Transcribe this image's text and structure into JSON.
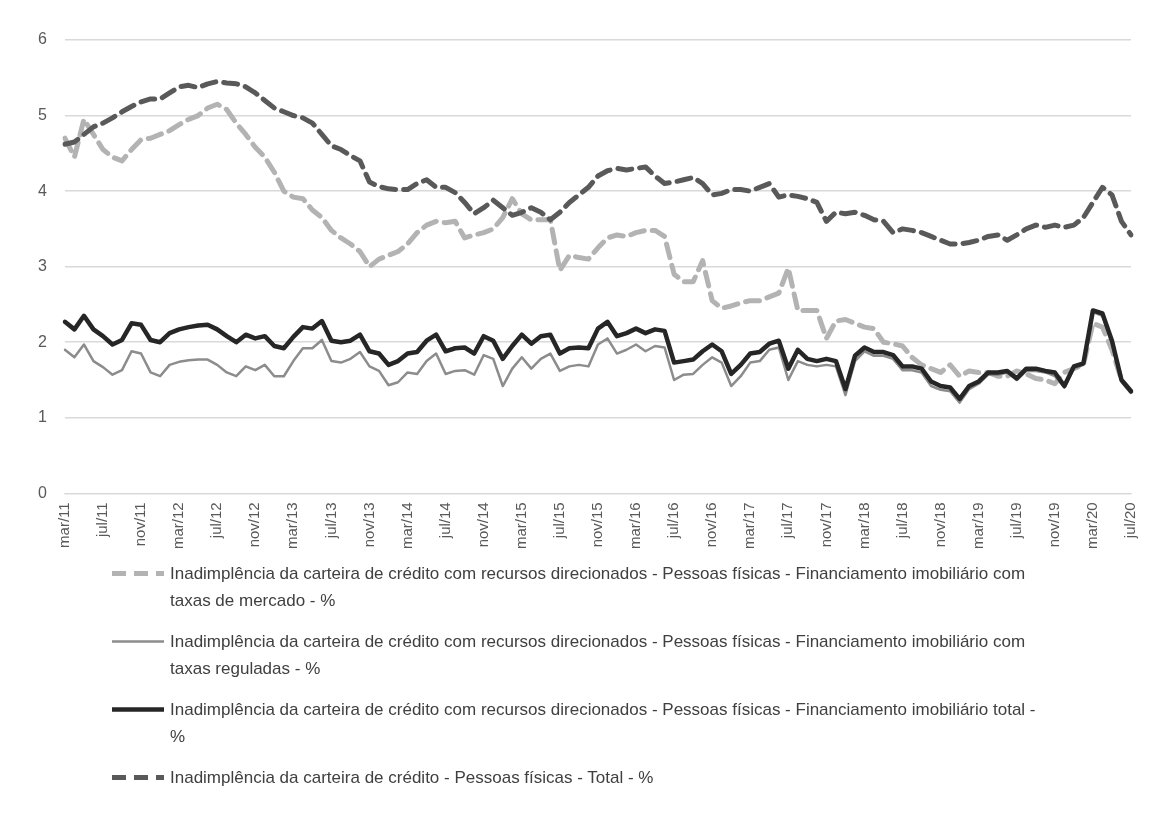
{
  "chart_data": {
    "type": "line",
    "categories": [
      "mar/11",
      null,
      null,
      null,
      "jul/11",
      null,
      null,
      null,
      "nov/11",
      null,
      null,
      null,
      "mar/12",
      null,
      null,
      null,
      "jul/12",
      null,
      null,
      null,
      "nov/12",
      null,
      null,
      null,
      "mar/13",
      null,
      null,
      null,
      "jul/13",
      null,
      null,
      null,
      "nov/13",
      null,
      null,
      null,
      "mar/14",
      null,
      null,
      null,
      "jul/14",
      null,
      null,
      null,
      "nov/14",
      null,
      null,
      null,
      "mar/15",
      null,
      null,
      null,
      "jul/15",
      null,
      null,
      null,
      "nov/15",
      null,
      null,
      null,
      "mar/16",
      null,
      null,
      null,
      "jul/16",
      null,
      null,
      null,
      "nov/16",
      null,
      null,
      null,
      "mar/17",
      null,
      null,
      null,
      "jul/17",
      null,
      null,
      null,
      "nov/17",
      null,
      null,
      null,
      "mar/18",
      null,
      null,
      null,
      "jul/18",
      null,
      null,
      null,
      "nov/18",
      null,
      null,
      null,
      "mar/19",
      null,
      null,
      null,
      "jul/19",
      null,
      null,
      null,
      "nov/19",
      null,
      null,
      null,
      "mar/20",
      null,
      null,
      null,
      "jul/20"
    ],
    "ylim": [
      0,
      6
    ],
    "yticks": [
      0,
      1,
      2,
      3,
      4,
      5,
      6
    ],
    "grid": "y",
    "legend": "bottom",
    "marker": "none",
    "series": [
      {
        "name": "Inadimplência da carteira de crédito com recursos direcionados - Pessoas físicas - Financiamento imobiliário com taxas de mercado - %",
        "color": "#b3b3b3",
        "line_style": "dashed",
        "values": [
          4.7,
          4.45,
          4.95,
          4.75,
          4.55,
          4.45,
          4.4,
          4.55,
          4.68,
          4.7,
          4.75,
          4.8,
          4.88,
          4.95,
          5.0,
          5.1,
          5.15,
          5.08,
          4.9,
          4.75,
          4.58,
          4.45,
          4.25,
          4.0,
          3.92,
          3.9,
          3.75,
          3.65,
          3.48,
          3.38,
          3.3,
          3.2,
          3.0,
          3.1,
          3.15,
          3.2,
          3.3,
          3.45,
          3.55,
          3.6,
          3.58,
          3.6,
          3.38,
          3.42,
          3.45,
          3.5,
          3.65,
          3.9,
          3.7,
          3.62,
          3.62,
          3.62,
          2.95,
          3.15,
          3.12,
          3.1,
          3.25,
          3.38,
          3.42,
          3.4,
          3.45,
          3.48,
          3.48,
          3.4,
          2.9,
          2.8,
          2.8,
          3.08,
          2.55,
          2.45,
          2.48,
          2.52,
          2.55,
          2.55,
          2.6,
          2.65,
          2.98,
          2.42,
          2.42,
          2.42,
          2.05,
          2.28,
          2.3,
          2.25,
          2.2,
          2.18,
          2.0,
          1.98,
          1.95,
          1.8,
          1.7,
          1.65,
          1.6,
          1.7,
          1.55,
          1.62,
          1.6,
          1.6,
          1.55,
          1.55,
          1.62,
          1.58,
          1.52,
          1.5,
          1.45,
          1.6,
          1.65,
          1.7,
          2.25,
          2.2,
          1.9,
          1.5,
          1.35
        ]
      },
      {
        "name": "Inadimplência da carteira de crédito com recursos direcionados - Pessoas físicas - Financiamento imobiliário com taxas reguladas - %",
        "color": "#8c8c8c",
        "line_style": "solid",
        "values": [
          1.9,
          1.8,
          1.97,
          1.75,
          1.67,
          1.57,
          1.63,
          1.88,
          1.85,
          1.6,
          1.55,
          1.7,
          1.74,
          1.76,
          1.77,
          1.77,
          1.7,
          1.6,
          1.55,
          1.68,
          1.63,
          1.7,
          1.55,
          1.55,
          1.75,
          1.92,
          1.92,
          2.03,
          1.75,
          1.73,
          1.78,
          1.87,
          1.68,
          1.62,
          1.43,
          1.47,
          1.6,
          1.58,
          1.75,
          1.85,
          1.58,
          1.62,
          1.63,
          1.57,
          1.83,
          1.78,
          1.42,
          1.65,
          1.8,
          1.65,
          1.78,
          1.85,
          1.62,
          1.68,
          1.7,
          1.68,
          1.97,
          2.05,
          1.85,
          1.9,
          1.97,
          1.88,
          1.95,
          1.93,
          1.5,
          1.57,
          1.58,
          1.7,
          1.8,
          1.73,
          1.42,
          1.55,
          1.73,
          1.75,
          1.9,
          1.93,
          1.5,
          1.75,
          1.7,
          1.68,
          1.7,
          1.68,
          1.3,
          1.75,
          1.88,
          1.82,
          1.82,
          1.78,
          1.63,
          1.63,
          1.6,
          1.42,
          1.37,
          1.35,
          1.2,
          1.38,
          1.45,
          1.57,
          1.57,
          1.6,
          1.5,
          1.62,
          1.62,
          1.6,
          1.55,
          1.4,
          1.65,
          1.7,
          2.4,
          2.35,
          1.98,
          1.48,
          1.33
        ]
      },
      {
        "name": "Inadimplência da carteira de crédito com recursos direcionados - Pessoas físicas - Financiamento imobiliário total - %",
        "color": "#262626",
        "line_style": "solid",
        "values": [
          2.27,
          2.17,
          2.35,
          2.17,
          2.08,
          1.97,
          2.03,
          2.25,
          2.23,
          2.03,
          2.0,
          2.12,
          2.17,
          2.2,
          2.22,
          2.23,
          2.17,
          2.08,
          2.0,
          2.1,
          2.05,
          2.08,
          1.95,
          1.92,
          2.07,
          2.2,
          2.18,
          2.28,
          2.02,
          2.0,
          2.02,
          2.1,
          1.88,
          1.85,
          1.7,
          1.75,
          1.85,
          1.87,
          2.02,
          2.1,
          1.88,
          1.92,
          1.93,
          1.85,
          2.08,
          2.02,
          1.78,
          1.95,
          2.1,
          1.98,
          2.08,
          2.1,
          1.85,
          1.92,
          1.93,
          1.92,
          2.18,
          2.27,
          2.08,
          2.12,
          2.18,
          2.12,
          2.17,
          2.15,
          1.73,
          1.75,
          1.77,
          1.88,
          1.97,
          1.88,
          1.58,
          1.7,
          1.85,
          1.87,
          1.98,
          2.02,
          1.65,
          1.9,
          1.78,
          1.75,
          1.78,
          1.75,
          1.38,
          1.82,
          1.93,
          1.87,
          1.87,
          1.83,
          1.68,
          1.68,
          1.65,
          1.48,
          1.42,
          1.4,
          1.25,
          1.42,
          1.48,
          1.6,
          1.6,
          1.62,
          1.52,
          1.65,
          1.65,
          1.62,
          1.6,
          1.42,
          1.68,
          1.72,
          2.42,
          2.38,
          2.02,
          1.5,
          1.35
        ]
      },
      {
        "name": "Inadimplência da carteira de crédito - Pessoas físicas - Total - %",
        "color": "#595959",
        "line_style": "dashed",
        "values": [
          4.62,
          4.65,
          4.75,
          4.85,
          4.9,
          4.97,
          5.05,
          5.12,
          5.18,
          5.22,
          5.22,
          5.3,
          5.38,
          5.4,
          5.37,
          5.42,
          5.45,
          5.43,
          5.42,
          5.38,
          5.3,
          5.2,
          5.1,
          5.05,
          5.0,
          4.97,
          4.9,
          4.75,
          4.6,
          4.55,
          4.47,
          4.4,
          4.12,
          4.06,
          4.03,
          4.02,
          4.02,
          4.1,
          4.15,
          4.05,
          4.05,
          3.98,
          3.85,
          3.7,
          3.78,
          3.88,
          3.78,
          3.68,
          3.72,
          3.78,
          3.72,
          3.62,
          3.72,
          3.85,
          3.95,
          4.05,
          4.2,
          4.27,
          4.3,
          4.28,
          4.3,
          4.32,
          4.2,
          4.1,
          4.12,
          4.15,
          4.18,
          4.1,
          3.95,
          3.97,
          4.02,
          4.02,
          4.0,
          4.05,
          4.1,
          3.92,
          3.95,
          3.93,
          3.9,
          3.85,
          3.6,
          3.72,
          3.7,
          3.72,
          3.68,
          3.62,
          3.6,
          3.45,
          3.5,
          3.48,
          3.45,
          3.4,
          3.35,
          3.3,
          3.3,
          3.32,
          3.35,
          3.4,
          3.42,
          3.35,
          3.42,
          3.5,
          3.55,
          3.52,
          3.55,
          3.52,
          3.55,
          3.65,
          3.85,
          4.05,
          3.95,
          3.6,
          3.42
        ]
      }
    ]
  }
}
